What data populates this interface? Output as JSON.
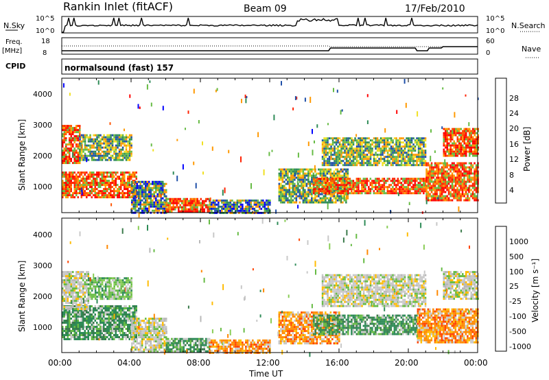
{
  "header": {
    "station": "Rankin Inlet (fitACF)",
    "beam": "Beam 09",
    "date": "17/Feb/2010"
  },
  "summary_panels": {
    "nsky": {
      "left_label": "N.Sky",
      "left_ticks": [
        "10^5",
        "10^0"
      ],
      "right_label": "N.Search",
      "right_ticks": [
        "10^5",
        "10^0"
      ]
    },
    "freq": {
      "left_label_1": "Freq.",
      "left_label_2": "[MHz]",
      "left_ticks": [
        "18",
        "8"
      ],
      "right_label": "Nave",
      "right_ticks": [
        "60",
        "0"
      ]
    },
    "cpid": {
      "label": "CPID",
      "mode_text": "normalsound (fast) 157"
    }
  },
  "x_axis": {
    "label": "Time UT",
    "ticks": [
      "00:00",
      "04:00",
      "08:00",
      "12:00",
      "16:00",
      "20:00",
      "00:00"
    ]
  },
  "chart_data": [
    {
      "type": "heatmap",
      "name": "power",
      "title": "",
      "ylabel": "Slant Range [km]",
      "yticks": [
        "1000",
        "2000",
        "3000",
        "4000"
      ],
      "xlabel": "Time UT",
      "xlim_hours": [
        0,
        24
      ],
      "ylim_km": [
        180,
        4500
      ],
      "colorbar": {
        "label": "Power [dB]",
        "ticks": [
          "4",
          "8",
          "12",
          "16",
          "20",
          "24",
          "28"
        ],
        "colors": [
          "#0000ff",
          "#1f4fa8",
          "#2e8b57",
          "#66bb44",
          "#f0e020",
          "#ff9900",
          "#ff5500",
          "#ff0000"
        ]
      },
      "regions": [
        {
          "t0": 0.0,
          "t1": 4.3,
          "r0": 700,
          "r1": 1500,
          "level": "high"
        },
        {
          "t0": 0.0,
          "t1": 1.0,
          "r0": 1800,
          "r1": 3000,
          "level": "high"
        },
        {
          "t0": 1.0,
          "t1": 4.0,
          "r0": 1900,
          "r1": 2700,
          "level": "medium"
        },
        {
          "t0": 4.0,
          "t1": 6.0,
          "r0": 200,
          "r1": 1200,
          "level": "low"
        },
        {
          "t0": 6.0,
          "t1": 8.5,
          "r0": 200,
          "r1": 650,
          "level": "high"
        },
        {
          "t0": 8.5,
          "t1": 12.0,
          "r0": 200,
          "r1": 600,
          "level": "low"
        },
        {
          "t0": 12.5,
          "t1": 16.5,
          "r0": 500,
          "r1": 1600,
          "level": "medium"
        },
        {
          "t0": 14.5,
          "t1": 21.0,
          "r0": 800,
          "r1": 1300,
          "level": "high"
        },
        {
          "t0": 15.0,
          "t1": 21.0,
          "r0": 1700,
          "r1": 2600,
          "level": "medium"
        },
        {
          "t0": 21.0,
          "t1": 24.0,
          "r0": 600,
          "r1": 1800,
          "level": "high"
        },
        {
          "t0": 22.0,
          "t1": 24.0,
          "r0": 2000,
          "r1": 2900,
          "level": "high"
        }
      ]
    },
    {
      "type": "heatmap",
      "name": "velocity",
      "title": "",
      "ylabel": "Slant Range [km]",
      "yticks": [
        "1000",
        "2000",
        "3000",
        "4000"
      ],
      "xlabel": "Time UT",
      "xlim_hours": [
        0,
        24
      ],
      "ylim_km": [
        180,
        4500
      ],
      "colorbar": {
        "label": "Velocity [m s⁻¹]",
        "ticks": [
          "1000",
          "500",
          "100",
          "25",
          "-25",
          "-100",
          "-500",
          "-1000"
        ],
        "colors": [
          "#1f4fa8",
          "#2e6fbf",
          "#2e8b57",
          "#66bb44",
          "#c8c8c8",
          "#ffbb00",
          "#ff8800",
          "#ff4400",
          "#ff0000"
        ]
      },
      "regions": [
        {
          "t0": 0.0,
          "t1": 4.3,
          "r0": 600,
          "r1": 1700,
          "level": "green"
        },
        {
          "t0": 0.0,
          "t1": 1.5,
          "r0": 1600,
          "r1": 2800,
          "level": "gray"
        },
        {
          "t0": 1.5,
          "t1": 4.0,
          "r0": 1900,
          "r1": 2600,
          "level": "lightgreen"
        },
        {
          "t0": 4.0,
          "t1": 6.0,
          "r0": 200,
          "r1": 1300,
          "level": "gray"
        },
        {
          "t0": 6.0,
          "t1": 8.5,
          "r0": 200,
          "r1": 650,
          "level": "green"
        },
        {
          "t0": 8.5,
          "t1": 12.0,
          "r0": 200,
          "r1": 600,
          "level": "orange"
        },
        {
          "t0": 12.5,
          "t1": 16.0,
          "r0": 500,
          "r1": 1500,
          "level": "orange"
        },
        {
          "t0": 14.5,
          "t1": 20.5,
          "r0": 800,
          "r1": 1400,
          "level": "green"
        },
        {
          "t0": 15.0,
          "t1": 21.0,
          "r0": 1700,
          "r1": 2700,
          "level": "gray"
        },
        {
          "t0": 20.5,
          "t1": 24.0,
          "r0": 500,
          "r1": 1600,
          "level": "orange"
        },
        {
          "t0": 22.0,
          "t1": 24.0,
          "r0": 1900,
          "r1": 2800,
          "level": "gray"
        }
      ]
    }
  ]
}
